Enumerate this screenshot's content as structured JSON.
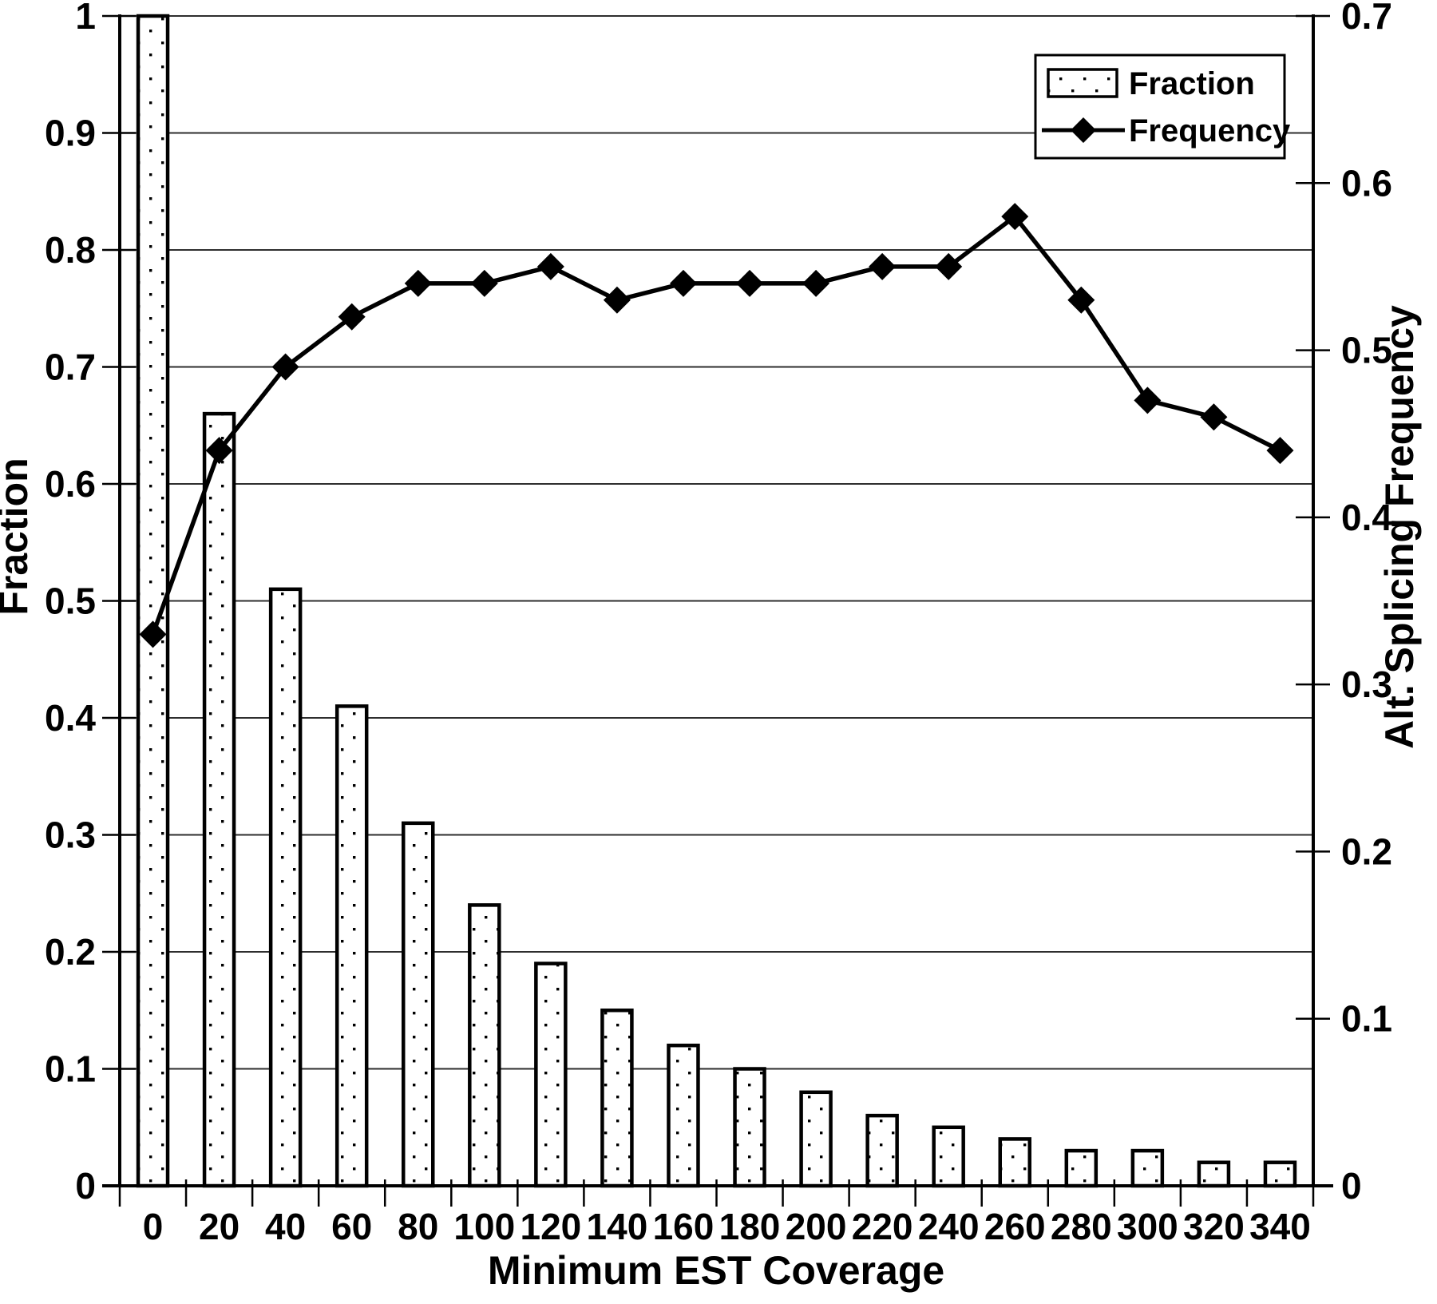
{
  "chart_data": {
    "type": "bar+line",
    "xlabel": "Minimum EST Coverage",
    "ylabel_left": "Fraction",
    "ylabel_right": "Alt. Splicing Frequency",
    "categories": [
      0,
      20,
      40,
      60,
      80,
      100,
      120,
      140,
      160,
      180,
      200,
      220,
      240,
      260,
      280,
      300,
      320,
      340
    ],
    "x_tick_labels": [
      "0",
      "20",
      "40",
      "60",
      "80",
      "100",
      "120",
      "140",
      "160",
      "180",
      "200",
      "220",
      "240",
      "260",
      "280",
      "300",
      "320",
      "340"
    ],
    "series": [
      {
        "name": "Fraction",
        "type": "bar",
        "axis": "left",
        "values": [
          1.0,
          0.66,
          0.51,
          0.41,
          0.31,
          0.24,
          0.19,
          0.15,
          0.12,
          0.1,
          0.08,
          0.06,
          0.05,
          0.04,
          0.03,
          0.03,
          0.02,
          0.02
        ]
      },
      {
        "name": "Frequency",
        "type": "line",
        "axis": "right",
        "values": [
          0.33,
          0.44,
          0.49,
          0.52,
          0.54,
          0.54,
          0.55,
          0.53,
          0.54,
          0.54,
          0.54,
          0.55,
          0.55,
          0.58,
          0.53,
          0.47,
          0.46,
          0.44
        ]
      }
    ],
    "left_axis": {
      "min": 0,
      "max": 1.0,
      "step": 0.1,
      "tick_labels_top_to_bottom": [
        "1",
        "0.9",
        "0.8",
        "0.7",
        "0.6",
        "0.5",
        "0.4",
        "0.3",
        "0.2",
        "0.1",
        "0"
      ]
    },
    "right_axis": {
      "min": 0,
      "max": 0.7,
      "step": 0.1,
      "tick_labels_top_to_bottom": [
        "0.7",
        "0.6",
        "0.5",
        "0.4",
        "0.3",
        "0.2",
        "0.1",
        "0"
      ]
    },
    "grid": "horizontal",
    "legend_position": "top-right",
    "colors": {
      "foreground": "#000000",
      "background": "#ffffff",
      "gridline": "#2e2e2e"
    }
  }
}
